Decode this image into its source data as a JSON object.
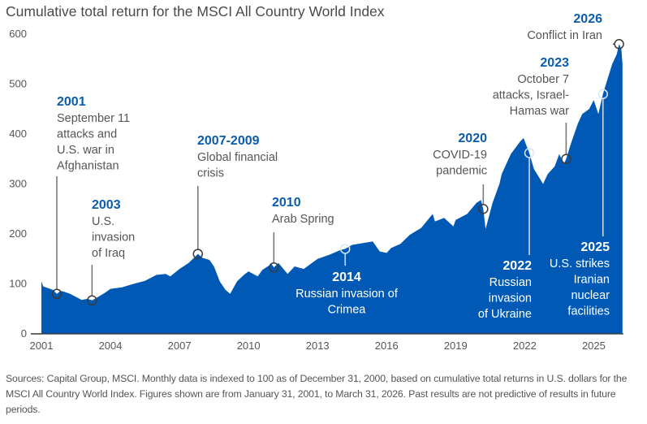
{
  "chart_data": {
    "type": "area",
    "title": "Cumulative total return for the MSCI All Country World Index",
    "xlabel": "",
    "ylabel": "",
    "ylim": [
      0,
      600
    ],
    "xlim": [
      2001.0,
      2026.25
    ],
    "yticks": [
      "0",
      "100",
      "200",
      "300",
      "400",
      "500",
      "600"
    ],
    "ytick_values": [
      0,
      100,
      200,
      300,
      400,
      500,
      600
    ],
    "xticks": [
      "2001",
      "2004",
      "2007",
      "2010",
      "2013",
      "2016",
      "2019",
      "2022",
      "2025"
    ],
    "xtick_values": [
      2001,
      2004,
      2007,
      2010,
      2013,
      2016,
      2019,
      2022,
      2025
    ],
    "grid": false,
    "series": [
      {
        "name": "MSCI All Country World Index (indexed to 100)",
        "color": "#005ab5",
        "x": [
          2001.0,
          2001.08,
          2001.25,
          2001.5,
          2001.67,
          2001.83,
          2002.0,
          2002.25,
          2002.5,
          2002.75,
          2003.0,
          2003.2,
          2003.5,
          2003.75,
          2004.0,
          2004.5,
          2005.0,
          2005.5,
          2006.0,
          2006.4,
          2006.6,
          2007.0,
          2007.4,
          2007.8,
          2008.0,
          2008.3,
          2008.5,
          2008.75,
          2009.0,
          2009.2,
          2009.5,
          2009.8,
          2010.0,
          2010.4,
          2010.6,
          2011.0,
          2011.1,
          2011.3,
          2011.7,
          2012.0,
          2012.4,
          2012.7,
          2013.0,
          2013.5,
          2014.0,
          2014.2,
          2014.5,
          2015.0,
          2015.4,
          2015.7,
          2016.0,
          2016.2,
          2016.6,
          2017.0,
          2017.5,
          2018.0,
          2018.1,
          2018.5,
          2018.9,
          2019.0,
          2019.5,
          2019.9,
          2020.1,
          2020.2,
          2020.3,
          2020.6,
          2020.9,
          2021.0,
          2021.4,
          2021.8,
          2021.95,
          2022.2,
          2022.4,
          2022.6,
          2022.8,
          2023.0,
          2023.3,
          2023.5,
          2023.7,
          2023.8,
          2024.0,
          2024.3,
          2024.5,
          2024.8,
          2025.0,
          2025.2,
          2025.4,
          2025.6,
          2025.8,
          2026.0,
          2026.1,
          2026.2,
          2026.25
        ],
        "values": [
          105,
          95,
          92,
          88,
          80,
          86,
          84,
          80,
          74,
          68,
          70,
          67,
          75,
          82,
          90,
          93,
          100,
          106,
          118,
          120,
          115,
          130,
          142,
          160,
          152,
          148,
          135,
          105,
          88,
          80,
          105,
          118,
          125,
          115,
          128,
          140,
          133,
          142,
          120,
          135,
          130,
          140,
          150,
          158,
          168,
          170,
          178,
          182,
          185,
          165,
          162,
          172,
          180,
          198,
          212,
          240,
          225,
          232,
          215,
          228,
          240,
          262,
          268,
          250,
          210,
          262,
          300,
          320,
          360,
          385,
          392,
          362,
          330,
          315,
          300,
          320,
          335,
          360,
          340,
          350,
          380,
          420,
          440,
          450,
          468,
          440,
          480,
          510,
          540,
          560,
          580,
          570,
          540
        ]
      }
    ],
    "annotations": [
      {
        "year_label": "2001",
        "text": [
          "September 11",
          "attacks and",
          "U.S. war in",
          "Afghanistan"
        ],
        "x": 2001.67,
        "y": 80
      },
      {
        "year_label": "2003",
        "text": [
          "U.S.",
          "invasion",
          "of Iraq"
        ],
        "x": 2003.2,
        "y": 67
      },
      {
        "year_label": "2007-2009",
        "text": [
          "Global financial",
          "crisis"
        ],
        "x": 2007.8,
        "y": 160
      },
      {
        "year_label": "2010",
        "text": [
          "Arab Spring"
        ],
        "x": 2011.1,
        "y": 133
      },
      {
        "year_label": "2014",
        "text": [
          "Russian invasion of",
          "Crimea"
        ],
        "x": 2014.2,
        "y": 170
      },
      {
        "year_label": "2020",
        "text": [
          "COVID-19",
          "pandemic"
        ],
        "x": 2020.2,
        "y": 250
      },
      {
        "year_label": "2022",
        "text": [
          "Russian",
          "invasion",
          "of Ukraine"
        ],
        "x": 2022.2,
        "y": 362
      },
      {
        "year_label": "2023",
        "text": [
          "October 7",
          "attacks, Israel-",
          "Hamas war"
        ],
        "x": 2023.8,
        "y": 350
      },
      {
        "year_label": "2025",
        "text": [
          "U.S. strikes",
          "Iranian",
          "nuclear",
          "facilities"
        ],
        "x": 2025.4,
        "y": 480
      },
      {
        "year_label": "2026",
        "text": [
          "Conflict in Iran"
        ],
        "x": 2026.1,
        "y": 580
      }
    ]
  },
  "colors": {
    "area": "#005ab5",
    "year_label": "#0b5cad",
    "text": "#555555",
    "axis": "#333333"
  },
  "footnote": "Sources: Capital Group, MSCI. Monthly data is indexed to 100 as of December 31, 2000, based on cumulative total returns in U.S. dollars for the MSCI All Country World Index. Figures shown are from January 31, 2001, to March 31, 2026. Past results are not predictive of results in future periods."
}
